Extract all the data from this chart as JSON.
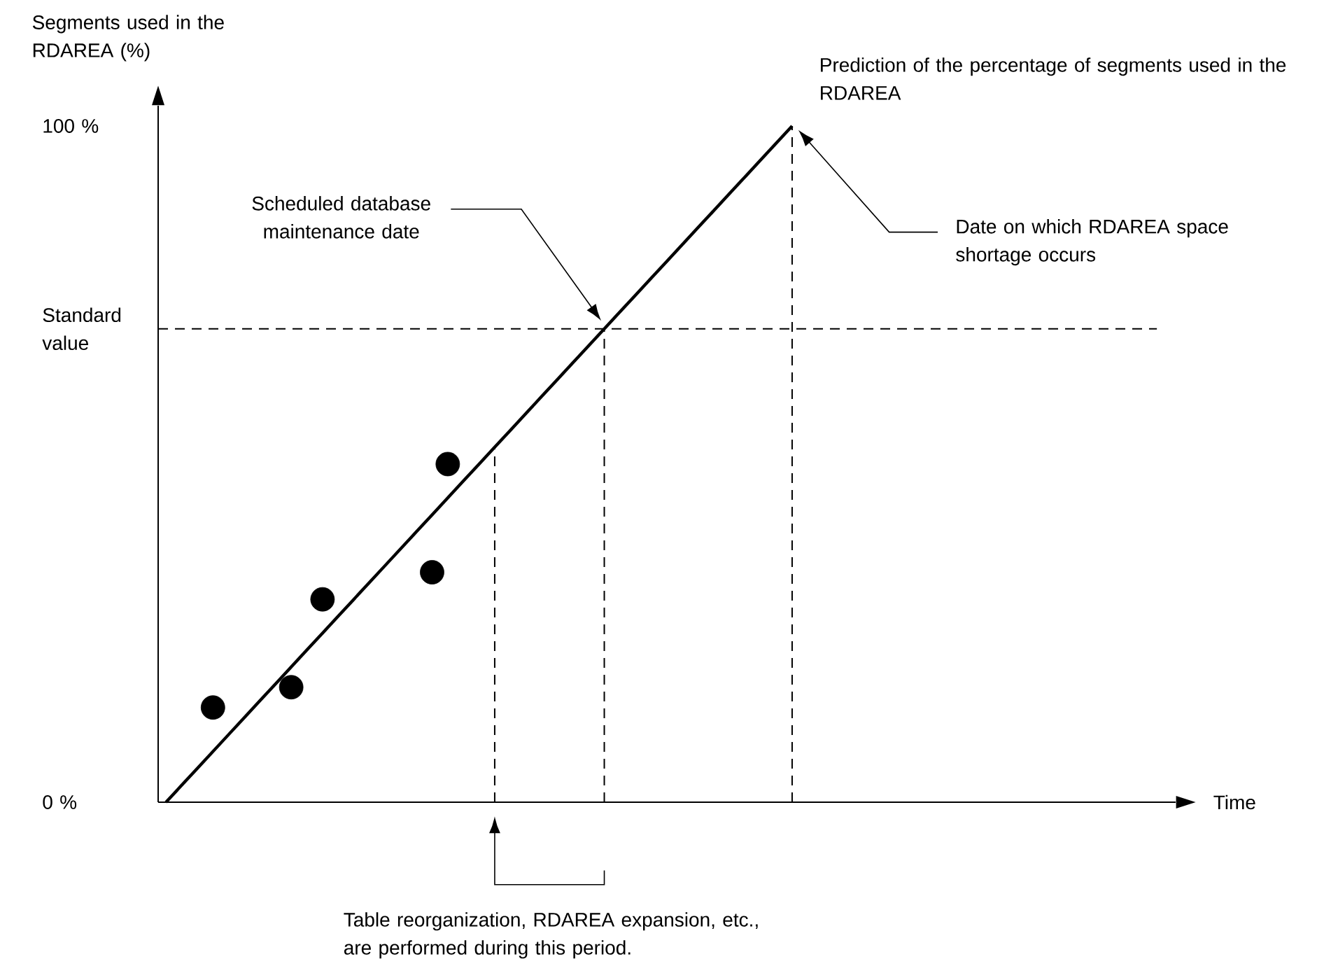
{
  "chart_data": {
    "type": "scatter",
    "ylabel": "Segments used in the RDAREA (%)",
    "xlabel": "Time",
    "ylim": [
      0,
      103
    ],
    "categories": [
      null,
      null,
      null,
      null,
      null,
      null,
      null,
      null,
      null,
      null,
      null,
      null,
      null,
      null,
      null,
      null,
      null,
      null,
      null,
      null,
      null,
      null,
      null,
      null,
      null,
      null,
      null,
      null,
      null,
      null,
      null,
      null,
      null,
      null,
      null,
      null,
      null,
      null,
      null,
      null,
      null,
      null,
      null,
      null,
      null,
      null,
      null,
      null,
      null,
      null,
      null,
      null,
      null,
      null,
      null,
      null,
      null,
      null,
      null,
      null,
      null,
      null,
      null,
      null,
      null
    ],
    "yticks": [
      {
        "value": 0,
        "label": "0 %"
      },
      {
        "value": 70,
        "label": "Standard value"
      },
      {
        "value": 100,
        "label": "100 %"
      }
    ],
    "tick_labels": "y",
    "series": [
      {
        "marker": "circle",
        "color": "#000000",
        "values": [
          null,
          null,
          null,
          14,
          null,
          null,
          null,
          null,
          17,
          null,
          30,
          null,
          null,
          null,
          null,
          null,
          null,
          34,
          50,
          null,
          null,
          null,
          null,
          null,
          null,
          null,
          null,
          null,
          null,
          null,
          null,
          null,
          null,
          null,
          null,
          null,
          null,
          null,
          null,
          null,
          null,
          null,
          null,
          null,
          null,
          null,
          null,
          null,
          null,
          null,
          null,
          null,
          null,
          null,
          null,
          null,
          null,
          null,
          null,
          null,
          null,
          null,
          null,
          null,
          null
        ]
      },
      {
        "type": "line",
        "marker": "none",
        "line_style": "solid",
        "color": "#000000",
        "values": [
          0,
          2.5,
          5,
          7.5,
          10,
          12.5,
          15,
          17.5,
          20,
          22.5,
          25,
          27.5,
          30,
          32.5,
          35,
          37.5,
          40,
          42.5,
          45,
          47.5,
          50,
          52.5,
          55,
          57.5,
          60,
          62.5,
          65,
          67.5,
          70,
          72.5,
          75,
          77.5,
          80,
          82.5,
          85,
          87.5,
          90,
          92.5,
          95,
          97.5,
          100,
          null,
          null,
          null,
          null,
          null,
          null,
          null,
          null,
          null,
          null,
          null,
          null,
          null,
          null,
          null,
          null,
          null,
          null,
          null,
          null,
          null,
          null,
          null,
          null
        ]
      }
    ],
    "ref_lines": [
      {
        "axis": "y",
        "value": 70,
        "line_style": "dashed",
        "color": "#000000"
      }
    ],
    "annotations": [
      "Scheduled database maintenance date",
      "Prediction of the percentage of segments used in the RDAREA",
      "Date on which RDAREA space shortage occurs",
      "Table reorganization, RDAREA expansion, etc., are performed during this period."
    ]
  }
}
